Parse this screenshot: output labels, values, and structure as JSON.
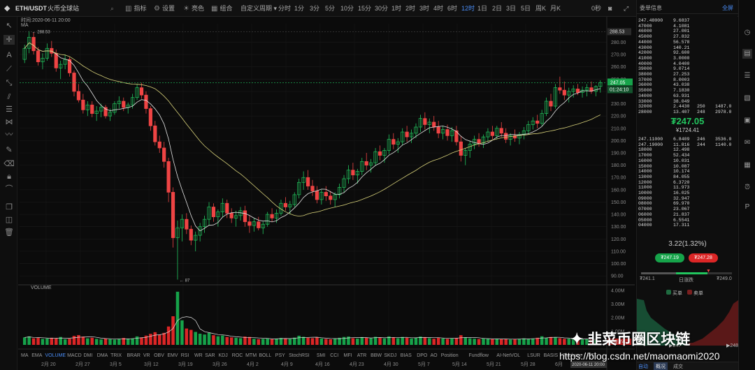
{
  "toolbar": {
    "logo": "◆",
    "symbol": "ETH/USDT",
    "exchange": "火币全球站",
    "indicator_label": "指标",
    "settings_label": "设置",
    "theme_label": "亮色",
    "combo_label": "组合",
    "custom_period_label": "自定义周期",
    "intervals": [
      "分时",
      "1分",
      "3分",
      "5分",
      "10分",
      "15分",
      "30分",
      "1时",
      "2时",
      "3时",
      "4时",
      "6时",
      "12时",
      "1日",
      "2日",
      "3日",
      "5日",
      "周K",
      "月K"
    ],
    "active_interval": "12时",
    "countdown": "0秒",
    "fullscreen_label": "全屏",
    "book_title": "委单信息"
  },
  "chart_header": {
    "time_label": "时间:2020-06-11 20:00",
    "ma_label": "MA",
    "volume_label": "VOLUME"
  },
  "chart_data": {
    "type": "candlestick",
    "symbol": "ETH/USDT",
    "interval": "12h",
    "ylim": [
      85,
      295
    ],
    "yticks": [
      90,
      100,
      110,
      120,
      130,
      140,
      150,
      160,
      170,
      180,
      190,
      200,
      210,
      220,
      230,
      240,
      250,
      260,
      270,
      280
    ],
    "ytick_labels": [
      "90.00",
      "100.00",
      "110.00",
      "120.00",
      "130.00",
      "140.00",
      "150.00",
      "160.00",
      "170.00",
      "180.00",
      "190.00",
      "200.00",
      "210.00",
      "220.00",
      "230.00",
      "240.00",
      "250.00",
      "260.00",
      "270.00",
      "280.00"
    ],
    "last_price": "247.05",
    "countdown": "01:24:10",
    "high_label": "288.53",
    "low_marker": "← 87",
    "high_marker_small": "← 288.53",
    "volume_ticks": [
      "4.00M",
      "3.00M",
      "2.00M",
      "1.00M"
    ],
    "volume_ylim": [
      0,
      4.2
    ],
    "volume_last": "352.74",
    "x_labels": [
      "2月 20",
      "2月 27",
      "3月 5",
      "3月 12",
      "3月 19",
      "3月 26",
      "4月 2",
      "4月 9",
      "4月 16",
      "4月 23",
      "4月 30",
      "5月 7",
      "5月 14",
      "5月 21",
      "5月 28",
      "6月"
    ],
    "crosshair_time": "2020-06-11 20:00",
    "candles": [
      [
        266,
        278,
        263,
        275
      ],
      [
        275,
        289,
        271,
        284
      ],
      [
        284,
        288,
        270,
        273
      ],
      [
        273,
        276,
        261,
        264
      ],
      [
        264,
        271,
        258,
        267
      ],
      [
        267,
        279,
        265,
        275
      ],
      [
        275,
        281,
        268,
        271
      ],
      [
        271,
        274,
        256,
        259
      ],
      [
        259,
        265,
        250,
        262
      ],
      [
        262,
        270,
        258,
        266
      ],
      [
        266,
        268,
        252,
        255
      ],
      [
        255,
        257,
        236,
        240
      ],
      [
        240,
        246,
        231,
        233
      ],
      [
        233,
        238,
        222,
        225
      ],
      [
        225,
        232,
        220,
        229
      ],
      [
        229,
        232,
        219,
        222
      ],
      [
        222,
        228,
        216,
        224
      ],
      [
        224,
        230,
        219,
        227
      ],
      [
        227,
        229,
        218,
        220
      ],
      [
        220,
        226,
        216,
        223
      ],
      [
        223,
        232,
        221,
        230
      ],
      [
        230,
        236,
        226,
        232
      ],
      [
        232,
        235,
        224,
        227
      ],
      [
        227,
        231,
        222,
        229
      ],
      [
        229,
        238,
        226,
        235
      ],
      [
        235,
        246,
        233,
        243
      ],
      [
        243,
        247,
        234,
        237
      ],
      [
        237,
        240,
        222,
        226
      ],
      [
        226,
        228,
        208,
        212
      ],
      [
        212,
        216,
        196,
        199
      ],
      [
        199,
        204,
        190,
        194
      ],
      [
        194,
        199,
        178,
        183
      ],
      [
        183,
        186,
        150,
        158
      ],
      [
        158,
        162,
        113,
        121
      ],
      [
        121,
        135,
        87,
        129
      ],
      [
        129,
        140,
        118,
        136
      ],
      [
        136,
        141,
        124,
        128
      ],
      [
        128,
        131,
        115,
        119
      ],
      [
        119,
        126,
        110,
        123
      ],
      [
        123,
        133,
        118,
        130
      ],
      [
        130,
        139,
        125,
        136
      ],
      [
        136,
        150,
        131,
        146
      ],
      [
        146,
        149,
        134,
        138
      ],
      [
        138,
        144,
        130,
        142
      ],
      [
        142,
        153,
        138,
        149
      ],
      [
        149,
        152,
        137,
        141
      ],
      [
        141,
        145,
        133,
        137
      ],
      [
        137,
        143,
        130,
        139
      ],
      [
        139,
        146,
        135,
        143
      ],
      [
        143,
        147,
        130,
        134
      ],
      [
        134,
        139,
        125,
        131
      ],
      [
        131,
        137,
        126,
        134
      ],
      [
        134,
        138,
        127,
        129
      ],
      [
        129,
        134,
        124,
        132
      ],
      [
        132,
        142,
        130,
        140
      ],
      [
        140,
        145,
        134,
        137
      ],
      [
        137,
        144,
        133,
        141
      ],
      [
        141,
        152,
        139,
        149
      ],
      [
        149,
        154,
        143,
        146
      ],
      [
        146,
        151,
        140,
        148
      ],
      [
        148,
        158,
        146,
        156
      ],
      [
        156,
        169,
        153,
        166
      ],
      [
        166,
        175,
        160,
        170
      ],
      [
        170,
        176,
        160,
        163
      ],
      [
        163,
        168,
        155,
        159
      ],
      [
        159,
        163,
        149,
        152
      ],
      [
        152,
        160,
        148,
        158
      ],
      [
        158,
        163,
        151,
        155
      ],
      [
        155,
        159,
        148,
        152
      ],
      [
        152,
        158,
        146,
        156
      ],
      [
        156,
        165,
        153,
        162
      ],
      [
        162,
        172,
        158,
        169
      ],
      [
        169,
        180,
        165,
        176
      ],
      [
        176,
        182,
        168,
        172
      ],
      [
        172,
        177,
        165,
        175
      ],
      [
        175,
        186,
        172,
        183
      ],
      [
        183,
        190,
        176,
        180
      ],
      [
        180,
        185,
        174,
        182
      ],
      [
        182,
        194,
        180,
        191
      ],
      [
        191,
        196,
        184,
        188
      ],
      [
        188,
        194,
        182,
        192
      ],
      [
        192,
        205,
        189,
        201
      ],
      [
        201,
        206,
        193,
        197
      ],
      [
        197,
        202,
        190,
        199
      ],
      [
        199,
        210,
        196,
        207
      ],
      [
        207,
        212,
        199,
        203
      ],
      [
        203,
        209,
        198,
        206
      ],
      [
        206,
        214,
        202,
        211
      ],
      [
        211,
        221,
        207,
        218
      ],
      [
        218,
        223,
        209,
        213
      ],
      [
        213,
        218,
        206,
        215
      ],
      [
        215,
        220,
        208,
        211
      ],
      [
        211,
        216,
        202,
        206
      ],
      [
        206,
        212,
        201,
        209
      ],
      [
        209,
        213,
        200,
        204
      ],
      [
        204,
        211,
        199,
        208
      ],
      [
        208,
        212,
        196,
        199
      ],
      [
        199,
        204,
        183,
        188
      ],
      [
        188,
        194,
        180,
        192
      ],
      [
        192,
        200,
        186,
        197
      ],
      [
        197,
        204,
        193,
        201
      ],
      [
        201,
        206,
        195,
        198
      ],
      [
        198,
        205,
        194,
        203
      ],
      [
        203,
        210,
        199,
        207
      ],
      [
        207,
        212,
        201,
        204
      ],
      [
        204,
        212,
        201,
        210
      ],
      [
        210,
        215,
        203,
        206
      ],
      [
        206,
        210,
        198,
        201
      ],
      [
        201,
        206,
        196,
        204
      ],
      [
        204,
        209,
        199,
        202
      ],
      [
        202,
        207,
        197,
        205
      ],
      [
        205,
        211,
        201,
        208
      ],
      [
        208,
        216,
        205,
        213
      ],
      [
        213,
        219,
        209,
        216
      ],
      [
        216,
        221,
        210,
        214
      ],
      [
        214,
        225,
        212,
        222
      ],
      [
        222,
        235,
        220,
        232
      ],
      [
        232,
        238,
        224,
        228
      ],
      [
        228,
        246,
        226,
        243
      ],
      [
        243,
        252,
        238,
        241
      ],
      [
        241,
        248,
        233,
        237
      ],
      [
        237,
        243,
        231,
        240
      ],
      [
        240,
        245,
        235,
        242
      ],
      [
        242,
        246,
        237,
        239
      ],
      [
        239,
        244,
        235,
        241
      ],
      [
        241,
        246,
        236,
        243
      ],
      [
        243,
        248,
        238,
        240
      ],
      [
        240,
        245,
        236,
        244
      ],
      [
        244,
        249,
        239,
        247
      ]
    ],
    "volume": [
      0.55,
      0.62,
      0.48,
      0.51,
      0.44,
      0.47,
      0.52,
      0.49,
      0.58,
      0.41,
      0.45,
      0.66,
      0.72,
      0.61,
      0.48,
      0.52,
      0.44,
      0.4,
      0.47,
      0.42,
      0.39,
      0.45,
      0.51,
      0.43,
      0.48,
      0.62,
      0.55,
      0.68,
      0.81,
      0.93,
      0.74,
      0.88,
      1.35,
      2.1,
      3.9,
      1.8,
      1.2,
      1.1,
      0.95,
      0.82,
      0.76,
      0.88,
      0.71,
      0.63,
      0.69,
      0.58,
      0.55,
      0.52,
      0.49,
      0.61,
      0.58,
      0.45,
      0.41,
      0.44,
      0.48,
      0.42,
      0.46,
      0.51,
      0.47,
      0.44,
      0.53,
      0.67,
      0.59,
      0.52,
      0.49,
      0.55,
      0.47,
      0.43,
      0.41,
      0.45,
      0.52,
      0.58,
      0.61,
      0.49,
      0.46,
      0.57,
      0.53,
      0.48,
      0.59,
      0.51,
      0.47,
      0.62,
      0.55,
      0.49,
      0.58,
      0.52,
      0.47,
      0.53,
      0.61,
      0.57,
      0.49,
      0.45,
      0.52,
      0.47,
      0.44,
      0.49,
      0.51,
      0.71,
      0.55,
      0.48,
      0.45,
      0.43,
      0.47,
      0.44,
      0.42,
      0.45,
      0.41,
      0.44,
      0.39,
      0.42,
      0.45,
      0.48,
      0.43,
      0.47,
      0.52,
      0.63,
      0.51,
      0.58,
      0.55,
      0.49,
      0.44,
      0.46,
      0.42,
      0.43,
      0.41,
      0.44,
      0.39,
      0.36
    ]
  },
  "indicators": [
    "MA",
    "EMA",
    "VOLUME",
    "MACD",
    "DMI",
    "DMA",
    "TRIX",
    "BRAR",
    "VR",
    "OBV",
    "EMV",
    "RSI",
    "WR",
    "SAR",
    "KDJ",
    "ROC",
    "MTM",
    "BOLL",
    "PSY",
    "StochRSI",
    "SMI",
    "CCI",
    "MFI",
    "ATR",
    "BBW",
    "SKDJ",
    "BIAS",
    "DPO",
    "AO",
    "Position",
    "Fundflow",
    "AI-NetVOL",
    "LSUR",
    "BASIS",
    "TVolume",
    "FTT"
  ],
  "active_indicator": "VOLUME",
  "orderbook": {
    "title": "委单信息",
    "asks": [
      [
        "247.48000",
        "9.6837"
      ],
      [
        "47000",
        "4.1081"
      ],
      [
        "46000",
        "27.001"
      ],
      [
        "45000",
        "27.832"
      ],
      [
        "44000",
        "56.578"
      ],
      [
        "43000",
        "140.21"
      ],
      [
        "42000",
        "92.600"
      ],
      [
        "41000",
        "3.0000"
      ],
      [
        "40000",
        "4.0400"
      ],
      [
        "39000",
        "9.0714"
      ],
      [
        "38000",
        "27.253"
      ],
      [
        "37000",
        "8.0003"
      ],
      [
        "36000",
        "43.038"
      ],
      [
        "35000",
        "7.1830"
      ],
      [
        "34000",
        "63.931"
      ],
      [
        "33000",
        "38.049"
      ],
      [
        "32000",
        "2.4430",
        "250",
        "1487.0"
      ],
      [
        "28000",
        "13.407",
        "248",
        "2978.0"
      ]
    ],
    "price": "₮247.05",
    "price_sub": "¥1724.41",
    "bids": [
      [
        "247.11000",
        "6.8409",
        "246",
        "3536.0"
      ],
      [
        "247.19000",
        "11.816",
        "244",
        "1140.0"
      ],
      [
        "18000",
        "12.498"
      ],
      [
        "17000",
        "52.434"
      ],
      [
        "16000",
        "10.031"
      ],
      [
        "15000",
        "10.087"
      ],
      [
        "14000",
        "10.174"
      ],
      [
        "13000",
        "84.055"
      ],
      [
        "12000",
        "6.3720"
      ],
      [
        "11000",
        "11.973"
      ],
      [
        "10000",
        "16.025"
      ],
      [
        "09000",
        "32.947"
      ],
      [
        "08000",
        "69.970"
      ],
      [
        "07000",
        "23.067"
      ],
      [
        "06000",
        "21.837"
      ],
      [
        "05000",
        "6.5541"
      ],
      [
        "04000",
        "17.311"
      ]
    ],
    "change": "3.22(1.32%)",
    "bid_button": "₮247.19",
    "ask_button": "₮247.28",
    "range_low": "₮241.1",
    "range_mid": "日涨跌",
    "range_high": "₮249.0",
    "legend_buy": "买单",
    "legend_sell": "卖单",
    "depth_left": "▶247",
    "depth_right": "▶248",
    "footer_left": "自动",
    "footer_mid": "概况",
    "footer_right": "成交"
  },
  "watermark": {
    "wechat_name": "韭菜币圈区块链",
    "url": "https://blog.csdn.net/maomaomi2020"
  }
}
